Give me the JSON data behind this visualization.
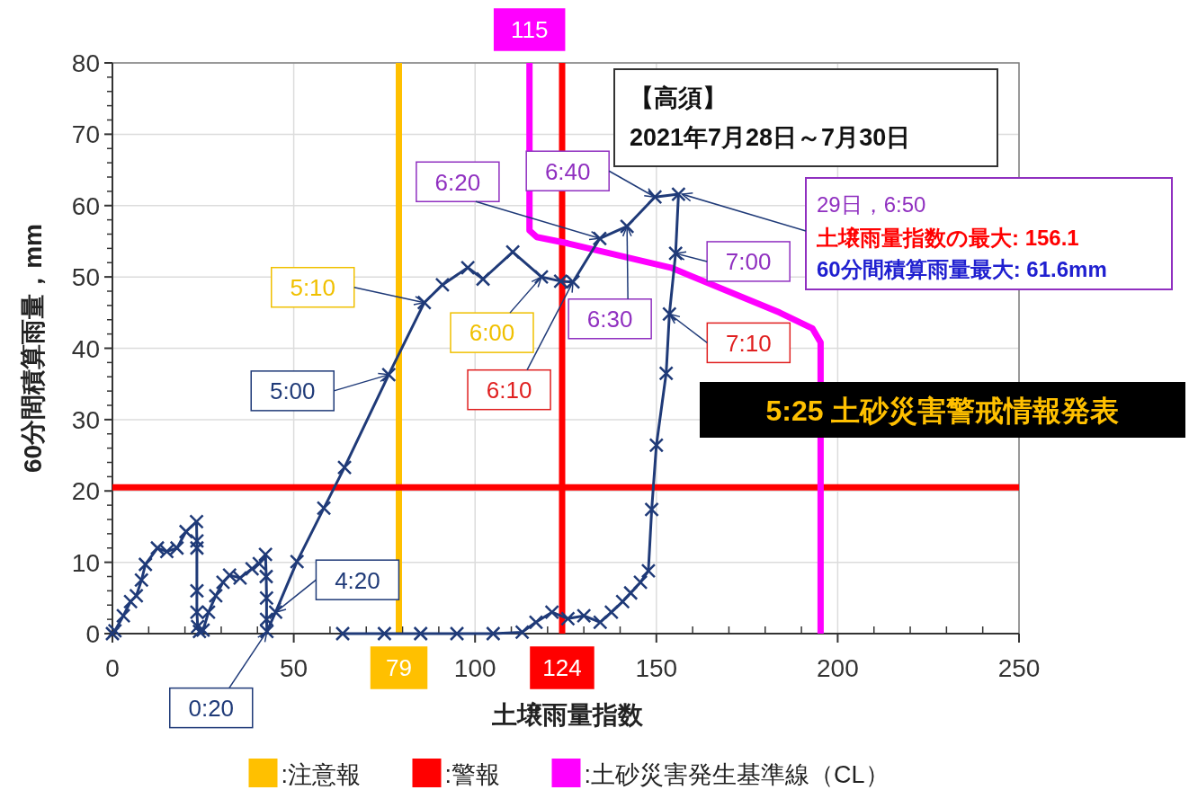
{
  "chart_data": {
    "type": "line",
    "title": "【高須】",
    "subtitle": "2021年7月28日～7月30日",
    "xlabel": "土壌雨量指数",
    "ylabel": "60分間積算雨量，mm",
    "xlim": [
      0,
      250
    ],
    "xticks": [
      0,
      50,
      100,
      150,
      200,
      250
    ],
    "ylim": [
      0,
      80
    ],
    "yticks": [
      0,
      10,
      20,
      30,
      40,
      50,
      60,
      70,
      80
    ],
    "grid": true,
    "legend": "bottom",
    "line_style": "solid",
    "series": [
      {
        "name": ":注意報",
        "color": "#ffc000",
        "marker": "none",
        "x": [
          79,
          79
        ],
        "values": [
          0,
          80
        ]
      },
      {
        "name": ":警報",
        "color": "#ff0000",
        "marker": "none",
        "x": [
          124,
          124,
          null,
          0,
          250
        ],
        "values": [
          80,
          0,
          null,
          20.5,
          20.5
        ]
      },
      {
        "name": ":土砂災害発生基準線（CL）",
        "color": "#ff00ff",
        "marker": "none",
        "x": [
          115,
          115,
          117,
          125.6,
          154,
          184,
          193,
          195.3,
          195.3
        ],
        "values": [
          80,
          56.5,
          55.6,
          54.7,
          51.3,
          45,
          42.8,
          40.8,
          0
        ]
      },
      {
        "color": "#1f3a78",
        "marker": "cross",
        "x": [
          0,
          0.7,
          3,
          5,
          6.6,
          8,
          9.1,
          12.4,
          15,
          17.8,
          20.3,
          23.2,
          23.3,
          23.3,
          23.3,
          23.3,
          23.5,
          24,
          25,
          26.5,
          28.5,
          30.5,
          32.3,
          35.2,
          38.5,
          40.5,
          42.2,
          42.4,
          42.5,
          42.5,
          42.6,
          45,
          50.9,
          58.3,
          64,
          76.2,
          86,
          91,
          98,
          102.2,
          110.4,
          118.3,
          123.6,
          127,
          134.4,
          141.9,
          149.6,
          156.1,
          155.3,
          153.6,
          152.7,
          150,
          148.7,
          147.8,
          145.6,
          142.9,
          140.7,
          137.6,
          134.5,
          130,
          125.6,
          121.2,
          116.8,
          113,
          105,
          95,
          85,
          75,
          63.5
        ],
        "values": [
          0,
          0.4,
          2.5,
          4.5,
          5.3,
          7.5,
          9.7,
          12,
          11.5,
          12,
          14.3,
          15.7,
          13,
          12,
          6,
          3,
          1,
          0.3,
          0.5,
          3,
          5.3,
          7.2,
          8.2,
          7.8,
          9.1,
          9.8,
          11.1,
          8,
          5,
          2,
          0.3,
          3,
          10.1,
          17.6,
          23.3,
          36.3,
          46.4,
          48.9,
          51.3,
          49.7,
          53.5,
          50,
          49.4,
          49.3,
          55.4,
          57.1,
          61.2,
          61.6,
          53.3,
          44.8,
          36.5,
          26.4,
          17.4,
          8.8,
          7.2,
          5.7,
          4.5,
          3,
          1.6,
          2.5,
          2.1,
          3,
          1.6,
          0.2,
          0,
          0,
          0,
          0,
          0
        ]
      }
    ],
    "annotations": [
      {
        "text": "0:20",
        "x": 42.6,
        "y": 0.3
      },
      {
        "text": "4:20",
        "x": 45,
        "y": 3
      },
      {
        "text": "5:00",
        "x": 76.2,
        "y": 36.3
      },
      {
        "text": "5:10",
        "x": 86,
        "y": 46.4
      },
      {
        "text": "6:00",
        "x": 118.3,
        "y": 50
      },
      {
        "text": "6:10",
        "x": 127,
        "y": 49.3
      },
      {
        "text": "6:20",
        "x": 134.4,
        "y": 55.4
      },
      {
        "text": "6:30",
        "x": 141.9,
        "y": 57.1
      },
      {
        "text": "6:40",
        "x": 149.6,
        "y": 61.2
      },
      {
        "text": "7:00",
        "x": 155.3,
        "y": 53.3
      },
      {
        "text": "7:10",
        "x": 153.6,
        "y": 44.8
      },
      {
        "text": "29日，6:50",
        "x": 156.1,
        "y": 61.6
      },
      "土壌雨量指数の最大: 156.1",
      "60分間積算雨量最大: 61.6mm",
      "5:25  土砂災害警戒情報発表",
      {
        "text": "115",
        "x": 115,
        "y": 80
      },
      {
        "text": "79",
        "x": 79,
        "y": 0
      },
      {
        "text": "124",
        "x": 124,
        "y": 0
      }
    ]
  }
}
